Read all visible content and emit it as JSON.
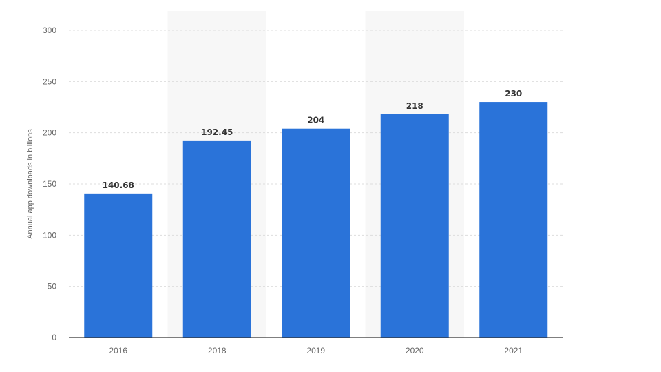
{
  "chart_data": {
    "type": "bar",
    "categories": [
      "2016",
      "2018",
      "2019",
      "2020",
      "2021"
    ],
    "values": [
      140.68,
      192.45,
      204,
      218,
      230
    ],
    "data_labels": [
      "140.68",
      "192.45",
      "204",
      "218",
      "230"
    ],
    "title": "",
    "xlabel": "",
    "ylabel": "Annual app downloads in billions",
    "ylim": [
      0,
      300
    ],
    "yticks": [
      0,
      50,
      100,
      150,
      200,
      250,
      300
    ],
    "ytick_labels": [
      "0",
      "50",
      "100",
      "150",
      "200",
      "250",
      "300"
    ],
    "grid": true,
    "legend": "none",
    "colors": {
      "bar": "#2a73d9",
      "band": "#f7f7f7",
      "grid": "#dddddd",
      "axis": "#333333"
    }
  }
}
